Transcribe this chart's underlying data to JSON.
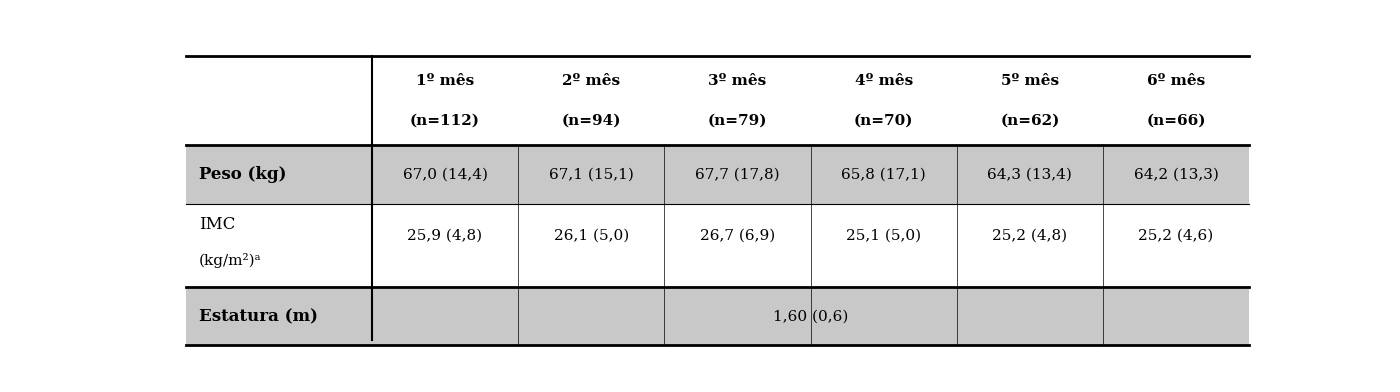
{
  "col_headers_line1": [
    "1º mês",
    "2º mês",
    "3º mês",
    "4º mês",
    "5º mês",
    "6º mês"
  ],
  "col_headers_line2": [
    "(n=112)",
    "(n=94)",
    "(n=79)",
    "(n=70)",
    "(n=62)",
    "(n=66)"
  ],
  "data": [
    [
      "67,0 (14,4)",
      "67,1 (15,1)",
      "67,7 (17,8)",
      "65,8 (17,1)",
      "64,3 (13,4)",
      "64,2 (13,3)"
    ],
    [
      "25,9 (4,8)",
      "26,1 (5,0)",
      "26,7 (6,9)",
      "25,1 (5,0)",
      "25,2 (4,8)",
      "25,2 (4,6)"
    ],
    [
      "1,60 (0,6)",
      "",
      "",
      "",
      "",
      ""
    ]
  ],
  "shade_color": "#c8c8c8",
  "bg_color": "#ffffff",
  "figsize": [
    14.0,
    3.92
  ],
  "dpi": 100
}
